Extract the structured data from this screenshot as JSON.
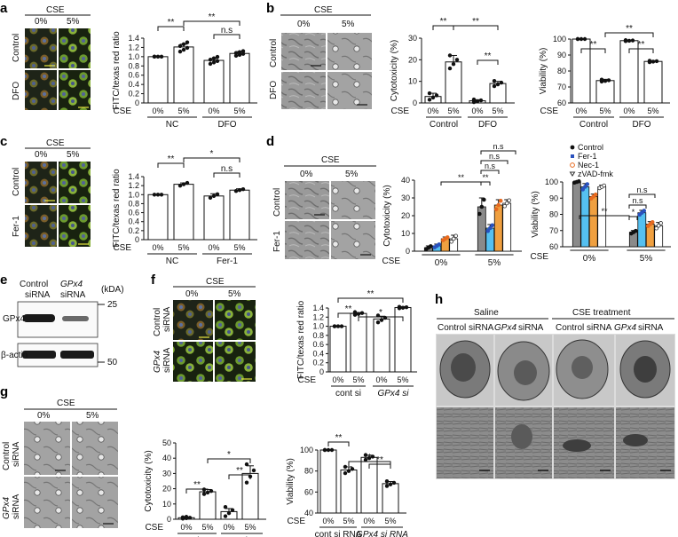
{
  "panel_letters": {
    "a": "a",
    "b": "b",
    "c": "c",
    "d": "d",
    "e": "e",
    "f": "f",
    "g": "g",
    "h": "h"
  },
  "common": {
    "cse": "CSE",
    "zero": "0%",
    "five": "5%",
    "control": "Control",
    "dfo": "DFO",
    "fer1": "Fer-1",
    "nc": "NC",
    "ns": "n.s",
    "star2": "**",
    "star1": "*"
  },
  "labels": {
    "fitc_ratio": "FITC/texas red ratio",
    "cytotoxicity": "Cytotoxicity (%)",
    "viability": "Viability (%)",
    "control_sirna_1": "Control",
    "control_sirna_2": "siRNA",
    "gpx4_sirna_1": "GPx4",
    "gpx4_sirna_2": "siRNA",
    "kda": "(kDA)",
    "gpx4": "GPx4",
    "bactin": "β-actin",
    "mw25": "25",
    "mw50": "50",
    "cont_si": "cont si",
    "gpx4_si_g": "GPx4",
    "si_suffix": "si",
    "cont_si_rna": "cont si RNA",
    "si_rna_suffix": "si RNA",
    "saline": "Saline",
    "cse_treatment": "CSE treatment",
    "control_sirna": "Control siRNA",
    "gpx4_sirna_h": "GPx4",
    "sirna_h": "siRNA"
  },
  "legend_d": [
    "Control",
    "Fer-1",
    "Nec-1",
    "zVAD-fmk"
  ],
  "colors": {
    "control": "#111111",
    "fer1": "#2a52be",
    "nec1": "#e86a1f",
    "zvad": "#333333",
    "bar_open": "#ffffff",
    "bar_gray": "#8a8a8a",
    "fer1_bar": "#55c0f0",
    "nec1_bar": "#f0a040"
  },
  "chart_data": [
    {
      "panel": "a",
      "type": "bar",
      "categories": [
        "NC 0%",
        "NC 5%",
        "DFO 0%",
        "DFO 5%"
      ],
      "values": [
        1.0,
        1.21,
        0.92,
        1.07
      ],
      "ylabel": "FITC/texas red ratio",
      "ylim": [
        0,
        1.4
      ],
      "yticks": [
        "0",
        "0.2",
        "0.4",
        "0.6",
        "0.8",
        "1.0",
        "1.2",
        "1.4"
      ]
    },
    {
      "panel": "b",
      "type": "bar",
      "categories": [
        "Control 0%",
        "Control 5%",
        "DFO 0%",
        "DFO 5%"
      ],
      "values": [
        3,
        19,
        1,
        9
      ],
      "ylabel": "Cytotoxicity (%)",
      "ylim": [
        0,
        30
      ],
      "yticks": [
        "0",
        "10",
        "20",
        "30"
      ]
    },
    {
      "panel": "b",
      "type": "bar",
      "categories": [
        "Control 0%",
        "Control 5%",
        "DFO 0%",
        "DFO 5%"
      ],
      "values": [
        100,
        74,
        99,
        86
      ],
      "ylabel": "Viability (%)",
      "ylim": [
        60,
        100
      ],
      "yticks": [
        "60",
        "70",
        "80",
        "90",
        "100"
      ]
    },
    {
      "panel": "c",
      "type": "bar",
      "categories": [
        "NC 0%",
        "NC 5%",
        "Fer-1 0%",
        "Fer-1 5%"
      ],
      "values": [
        1.0,
        1.23,
        0.97,
        1.1
      ],
      "ylabel": "FITC/texas red ratio",
      "ylim": [
        0,
        1.4
      ],
      "yticks": [
        "0",
        "0.2",
        "0.4",
        "0.6",
        "0.8",
        "1.0",
        "1.2",
        "1.4"
      ]
    },
    {
      "panel": "d",
      "type": "bar",
      "categories": [
        "0%",
        "5%"
      ],
      "series": [
        {
          "name": "Control",
          "values": [
            2,
            25
          ]
        },
        {
          "name": "Fer-1",
          "values": [
            3,
            13
          ]
        },
        {
          "name": "Nec-1",
          "values": [
            7,
            26
          ]
        },
        {
          "name": "zVAD-fmk",
          "values": [
            7,
            27
          ]
        }
      ],
      "ylabel": "Cytotoxicity (%)",
      "ylim": [
        0,
        40
      ],
      "yticks": [
        "0",
        "10",
        "20",
        "30",
        "40"
      ]
    },
    {
      "panel": "d",
      "type": "bar",
      "categories": [
        "0%",
        "5%"
      ],
      "series": [
        {
          "name": "Control",
          "values": [
            100,
            69
          ]
        },
        {
          "name": "Fer-1",
          "values": [
            97,
            81
          ]
        },
        {
          "name": "Nec-1",
          "values": [
            91,
            74
          ]
        },
        {
          "name": "zVAD-fmk",
          "values": [
            97,
            73
          ]
        }
      ],
      "ylabel": "Viability (%)",
      "ylim": [
        60,
        100
      ],
      "yticks": [
        "60",
        "70",
        "80",
        "90",
        "100"
      ]
    },
    {
      "panel": "f",
      "type": "bar",
      "categories": [
        "cont si 0%",
        "cont si 5%",
        "GPx4 si 0%",
        "GPx4 si 5%"
      ],
      "values": [
        1.0,
        1.28,
        1.16,
        1.41
      ],
      "ylabel": "FITC/texas red ratio",
      "ylim": [
        0,
        1.4
      ],
      "yticks": [
        "0",
        "0.2",
        "0.4",
        "0.6",
        "0.8",
        "1.0",
        "1.2",
        "1.4"
      ]
    },
    {
      "panel": "g",
      "type": "bar",
      "categories": [
        "cont si RNA 0%",
        "cont si RNA 5%",
        "GPx4 si RNA 0%",
        "GPx4 si RNA 5%"
      ],
      "values": [
        1,
        18,
        5,
        30
      ],
      "ylabel": "Cytotoxicity (%)",
      "ylim": [
        0,
        50
      ],
      "yticks": [
        "0",
        "10",
        "20",
        "30",
        "40",
        "50"
      ]
    },
    {
      "panel": "g",
      "type": "bar",
      "categories": [
        "cont si RNA 0%",
        "cont si RNA 5%",
        "GPx4 si RNA 0%",
        "GPx4 si RNA 5%"
      ],
      "values": [
        100,
        81,
        93,
        68
      ],
      "ylabel": "Viability (%)",
      "ylim": [
        40,
        100
      ],
      "yticks": [
        "40",
        "60",
        "80",
        "100"
      ]
    }
  ]
}
